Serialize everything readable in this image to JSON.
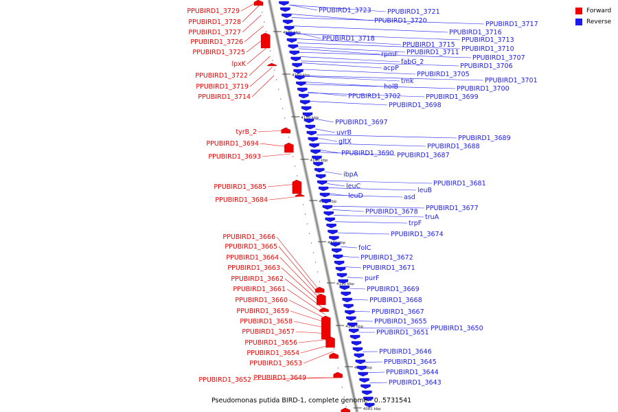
{
  "caption": "Pseudomonas putida BIRD-1, complete genome - 0..5731541",
  "legend": [
    {
      "label": "Forward",
      "color": "#ee0000"
    },
    {
      "label": "Reverse",
      "color": "#1a1aee"
    }
  ],
  "colors": {
    "forward": "#ee0000",
    "reverse": "#1a1aee",
    "backbone": "#888888"
  },
  "scale_marks": [
    "4170 kbp",
    "4160 kbp",
    "4150 kbp",
    "4140 kbp",
    "4130 kbp",
    "4120 kbp",
    "4110 kbp",
    "4100 kbp",
    "4090 kbp",
    "4081 kbp"
  ],
  "forward_labels": [
    "PPUBIRD1_3729",
    "PPUBIRD1_3728",
    "PPUBIRD1_3727",
    "PPUBIRD1_3726",
    "PPUBIRD1_3725",
    "lpxK",
    "PPUBIRD1_3722",
    "PPUBIRD1_3719",
    "PPUBIRD1_3714",
    "tyrB_2",
    "PPUBIRD1_3694",
    "PPUBIRD1_3693",
    "PPUBIRD1_3685",
    "PPUBIRD1_3684",
    "PPUBIRD1_3666",
    "PPUBIRD1_3665",
    "PPUBIRD1_3664",
    "PPUBIRD1_3663",
    "PPUBIRD1_3662",
    "PPUBIRD1_3661",
    "PPUBIRD1_3660",
    "PPUBIRD1_3659",
    "PPUBIRD1_3658",
    "PPUBIRD1_3657",
    "PPUBIRD1_3656",
    "PPUBIRD1_3654",
    "PPUBIRD1_3653",
    "PPUBIRD1_3652",
    "PPUBIRD1_3649"
  ],
  "reverse_labels": [
    "PPUBIRD1_3723",
    "PPUBIRD1_3721",
    "PPUBIRD1_3720",
    "PPUBIRD1_3717",
    "PPUBIRD1_3716",
    "PPUBIRD1_3718",
    "PPUBIRD1_3713",
    "PPUBIRD1_3715",
    "PPUBIRD1_3710",
    "rpmF",
    "PPUBIRD1_3711",
    "PPUBIRD1_3707",
    "fabG_2",
    "acpP",
    "PPUBIRD1_3706",
    "PPUBIRD1_3705",
    "tmk",
    "PPUBIRD1_3701",
    "holB",
    "PPUBIRD1_3700",
    "PPUBIRD1_3702",
    "PPUBIRD1_3699",
    "PPUBIRD1_3698",
    "PPUBIRD1_3697",
    "uvrB",
    "gltX",
    "PPUBIRD1_3689",
    "PPUBIRD1_3690",
    "PPUBIRD1_3688",
    "PPUBIRD1_3687",
    "ibpA",
    "PPUBIRD1_3681",
    "leuC",
    "leuB",
    "leuD",
    "asd",
    "PPUBIRD1_3677",
    "PPUBIRD1_3678",
    "truA",
    "trpF",
    "PPUBIRD1_3674",
    "folC",
    "PPUBIRD1_3672",
    "PPUBIRD1_3671",
    "purF",
    "PPUBIRD1_3669",
    "PPUBIRD1_3668",
    "PPUBIRD1_3667",
    "PPUBIRD1_3655",
    "PPUBIRD1_3650",
    "PPUBIRD1_3651",
    "PPUBIRD1_3646",
    "PPUBIRD1_3645",
    "PPUBIRD1_3644",
    "PPUBIRD1_3643"
  ]
}
